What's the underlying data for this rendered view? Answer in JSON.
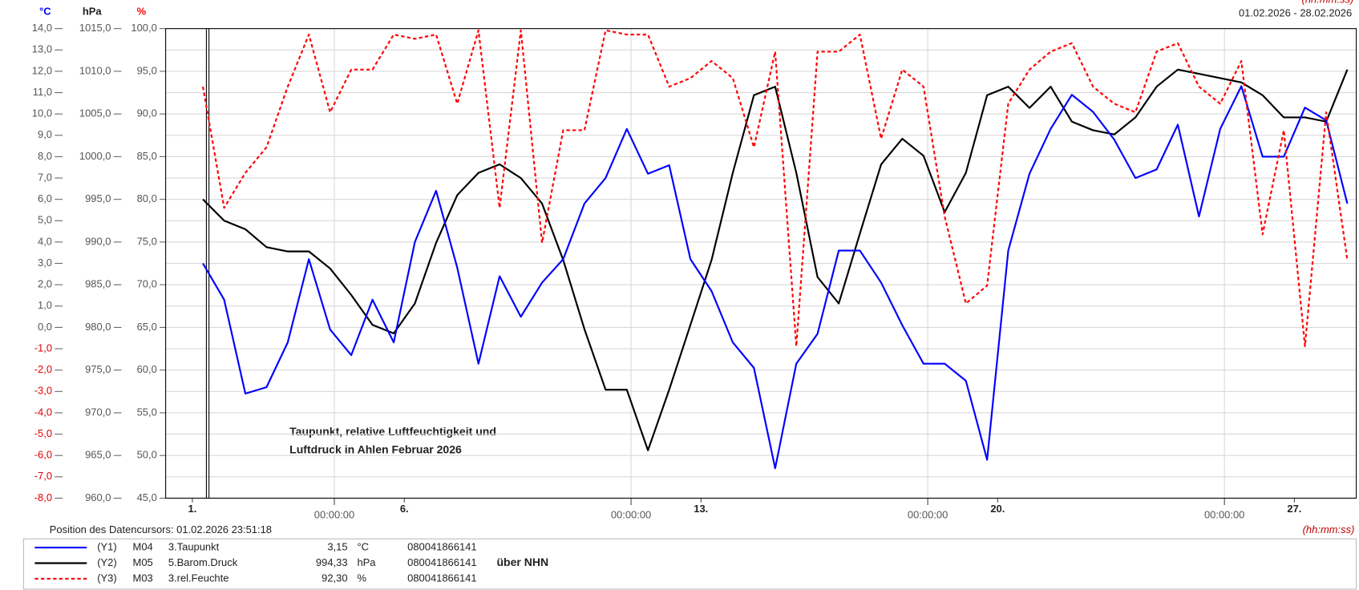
{
  "chart_data": {
    "type": "line",
    "annotation": [
      "Taupunkt, relative Luftfeuchtigkeit und",
      "Luftdruck in Ahlen Februar 2026"
    ],
    "date_range": "01.02.2026 - 28.02.2026",
    "time_unit": "(hh:mm:ss)",
    "cursor_text": "Position des Datencursors: 01.02.2026 23:51:18",
    "y_label": "°C",
    "y2_label": "hPa",
    "y3_label": "%",
    "grid": true,
    "xlim": [
      0.37,
      28.46
    ],
    "xticks": [
      {
        "value": 1,
        "label": "1."
      },
      {
        "value": 6,
        "label": "6."
      },
      {
        "value": 13,
        "label": "13."
      },
      {
        "value": 20,
        "label": "20."
      },
      {
        "value": 27,
        "label": "27."
      }
    ],
    "xticks_time": [
      {
        "value": 4.35,
        "label": "00:00:00"
      },
      {
        "value": 11.35,
        "label": "00:00:00"
      },
      {
        "value": 18.35,
        "label": "00:00:00"
      },
      {
        "value": 25.35,
        "label": "00:00:00"
      }
    ],
    "ylim": [
      -8,
      14
    ],
    "yticks": [
      {
        "value": 14,
        "label": "14,0"
      },
      {
        "value": 13,
        "label": "13,0"
      },
      {
        "value": 12,
        "label": "12,0"
      },
      {
        "value": 11,
        "label": "11,0"
      },
      {
        "value": 10,
        "label": "10,0"
      },
      {
        "value": 9,
        "label": "9,0"
      },
      {
        "value": 8,
        "label": "8,0"
      },
      {
        "value": 7,
        "label": "7,0"
      },
      {
        "value": 6,
        "label": "6,0"
      },
      {
        "value": 5,
        "label": "5,0"
      },
      {
        "value": 4,
        "label": "4,0"
      },
      {
        "value": 3,
        "label": "3,0"
      },
      {
        "value": 2,
        "label": "2,0"
      },
      {
        "value": 1,
        "label": "1,0"
      },
      {
        "value": 0,
        "label": "0,0"
      },
      {
        "value": -1,
        "label": "-1,0"
      },
      {
        "value": -2,
        "label": "-2,0"
      },
      {
        "value": -3,
        "label": "-3,0"
      },
      {
        "value": -4,
        "label": "-4,0"
      },
      {
        "value": -5,
        "label": "-5,0"
      },
      {
        "value": -6,
        "label": "-6,0"
      },
      {
        "value": -7,
        "label": "-7,0"
      },
      {
        "value": -8,
        "label": "-8,0"
      }
    ],
    "y2lim": [
      960,
      1015
    ],
    "y2ticks": [
      {
        "value": 1015,
        "label": "1015,0"
      },
      {
        "value": 1010,
        "label": "1010,0"
      },
      {
        "value": 1005,
        "label": "1005,0"
      },
      {
        "value": 1000,
        "label": "1000,0"
      },
      {
        "value": 995,
        "label": "995,0"
      },
      {
        "value": 990,
        "label": "990,0"
      },
      {
        "value": 985,
        "label": "985,0"
      },
      {
        "value": 980,
        "label": "980,0"
      },
      {
        "value": 975,
        "label": "975,0"
      },
      {
        "value": 970,
        "label": "970,0"
      },
      {
        "value": 965,
        "label": "965,0"
      },
      {
        "value": 960,
        "label": "960,0"
      }
    ],
    "y3lim": [
      45,
      100
    ],
    "y3ticks": [
      {
        "value": 100,
        "label": "100,0"
      },
      {
        "value": 95,
        "label": "95,0"
      },
      {
        "value": 90,
        "label": "90,0"
      },
      {
        "value": 85,
        "label": "85,0"
      },
      {
        "value": 80,
        "label": "80,0"
      },
      {
        "value": 75,
        "label": "75,0"
      },
      {
        "value": 70,
        "label": "70,0"
      },
      {
        "value": 65,
        "label": "65,0"
      },
      {
        "value": 60,
        "label": "60,0"
      },
      {
        "value": 55,
        "label": "55,0"
      },
      {
        "value": 50,
        "label": "50,0"
      },
      {
        "value": 45,
        "label": "45,0"
      }
    ],
    "x": [
      1.25,
      1.75,
      2.25,
      2.75,
      3.25,
      3.75,
      4.25,
      4.75,
      5.25,
      5.75,
      6.25,
      6.75,
      7.25,
      7.75,
      8.25,
      8.75,
      9.25,
      9.75,
      10.25,
      10.75,
      11.25,
      11.75,
      12.25,
      12.75,
      13.25,
      13.75,
      14.25,
      14.75,
      15.25,
      15.75,
      16.25,
      16.75,
      17.25,
      17.75,
      18.25,
      18.75,
      19.25,
      19.75,
      20.25,
      20.75,
      21.25,
      21.75,
      22.25,
      22.75,
      23.25,
      23.75,
      24.25,
      24.75,
      25.25,
      25.75,
      26.25,
      26.75,
      27.25,
      27.75,
      28.25
    ],
    "series": [
      {
        "name": "3.Taupunkt",
        "color": "#0000ff",
        "axis": "y",
        "dashed": false,
        "tag": "(Y1)",
        "channel": "M04",
        "cursor_value": "3,15",
        "unit": "°C",
        "serial": "080041866141",
        "values": [
          3.0,
          1.3,
          -3.1,
          -2.8,
          -0.7,
          3.2,
          -0.1,
          -1.3,
          1.3,
          -0.7,
          4.0,
          6.4,
          2.8,
          -1.7,
          2.4,
          0.5,
          2.1,
          3.2,
          5.8,
          7.0,
          9.3,
          7.2,
          7.6,
          3.2,
          1.7,
          -0.7,
          -1.9,
          -6.6,
          -1.7,
          -0.3,
          3.6,
          3.6,
          2.1,
          0.1,
          -1.7,
          -1.7,
          -2.5,
          -6.2,
          3.6,
          7.2,
          9.3,
          10.9,
          10.1,
          8.8,
          7.0,
          7.4,
          9.5,
          5.2,
          9.3,
          11.3,
          8.0,
          8.0,
          10.3,
          9.7,
          5.8
        ]
      },
      {
        "name": "5.Barom.Druck",
        "color": "#000000",
        "axis": "y2",
        "dashed": false,
        "tag": "(Y2)",
        "channel": "M05",
        "cursor_value": "994,33",
        "unit": "hPa",
        "serial": "080041866141",
        "note": "über NHN",
        "values": [
          995.0,
          992.5,
          991.5,
          989.4,
          988.9,
          988.9,
          986.9,
          983.8,
          980.3,
          979.3,
          982.8,
          989.9,
          995.5,
          998.1,
          999.1,
          997.5,
          994.5,
          987.9,
          979.8,
          972.7,
          972.7,
          965.6,
          972.7,
          980.3,
          987.9,
          998.1,
          1007.2,
          1008.2,
          998.1,
          985.9,
          982.8,
          991.0,
          999.1,
          1002.1,
          1000.1,
          993.5,
          998.1,
          1007.2,
          1008.2,
          1005.7,
          1008.2,
          1004.1,
          1003.1,
          1002.6,
          1004.6,
          1008.2,
          1010.2,
          1009.7,
          1009.2,
          1008.7,
          1007.2,
          1004.6,
          1004.6,
          1004.1,
          1010.2
        ]
      },
      {
        "name": "3.rel.Feuchte",
        "color": "#ff0000",
        "axis": "y3",
        "dashed": true,
        "tag": "(Y3)",
        "channel": "M03",
        "cursor_value": "92,30",
        "unit": "%",
        "serial": "080041866141",
        "values": [
          93.2,
          79.0,
          83.1,
          86.1,
          93.2,
          99.3,
          90.2,
          95.2,
          95.2,
          99.3,
          98.8,
          99.3,
          91.2,
          99.8,
          79.0,
          99.8,
          74.9,
          88.1,
          88.1,
          99.8,
          99.3,
          99.3,
          93.2,
          94.2,
          96.2,
          94.2,
          86.1,
          97.3,
          62.8,
          97.3,
          97.3,
          99.3,
          87.1,
          95.2,
          93.2,
          78.0,
          67.8,
          69.9,
          91.2,
          95.2,
          97.3,
          98.3,
          93.2,
          91.2,
          90.2,
          97.3,
          98.3,
          93.2,
          91.2,
          96.2,
          75.9,
          88.1,
          62.8,
          90.2,
          72.9
        ]
      }
    ]
  }
}
